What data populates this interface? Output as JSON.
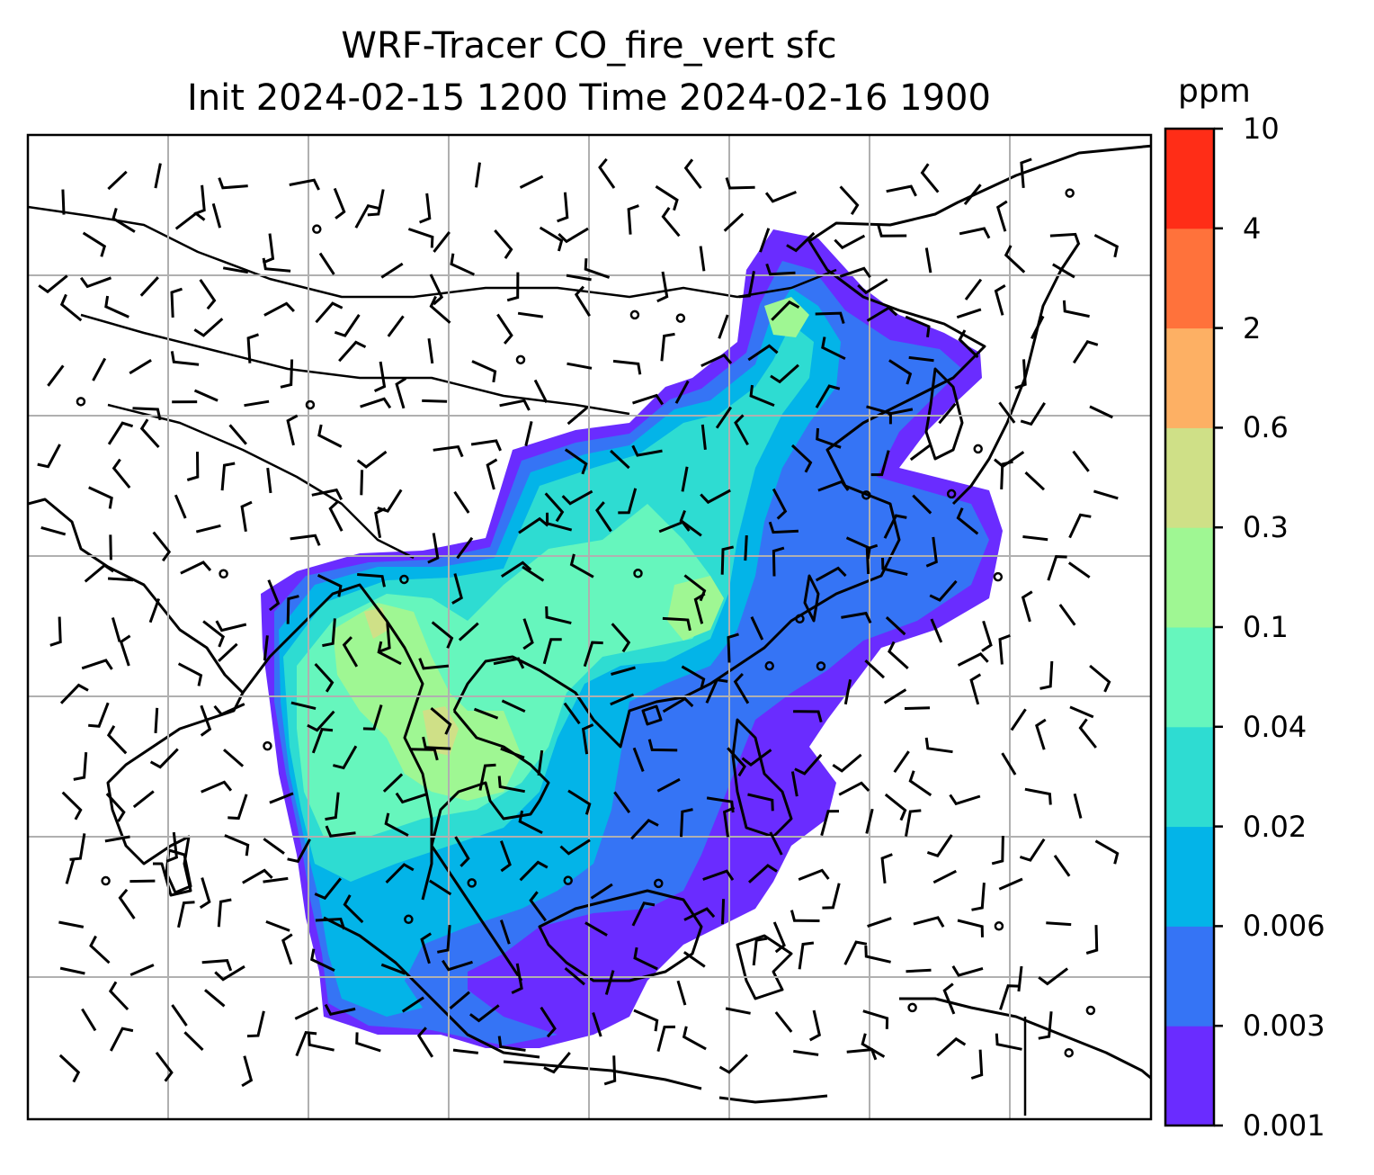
{
  "title": {
    "line1": "WRF-Tracer CO_fire_vert sfc",
    "line2": "Init 2024-02-15 1200 Time 2024-02-16 1900"
  },
  "colorbar": {
    "unit": "ppm",
    "levels": [
      "0.001",
      "0.003",
      "0.006",
      "0.02",
      "0.04",
      "0.1",
      "0.3",
      "0.6",
      "2",
      "4",
      "10"
    ],
    "colors": [
      "#6a2cff",
      "#3574f5",
      "#03b4e8",
      "#2edcd2",
      "#66f6bd",
      "#9ff793",
      "#cfe087",
      "#fdb064",
      "#ff723b",
      "#ff2d17"
    ]
  },
  "map": {
    "variable": "CO_fire_vert",
    "level": "sfc",
    "overlay": "wind barbs",
    "coastlines": true,
    "gridlines": true
  }
}
